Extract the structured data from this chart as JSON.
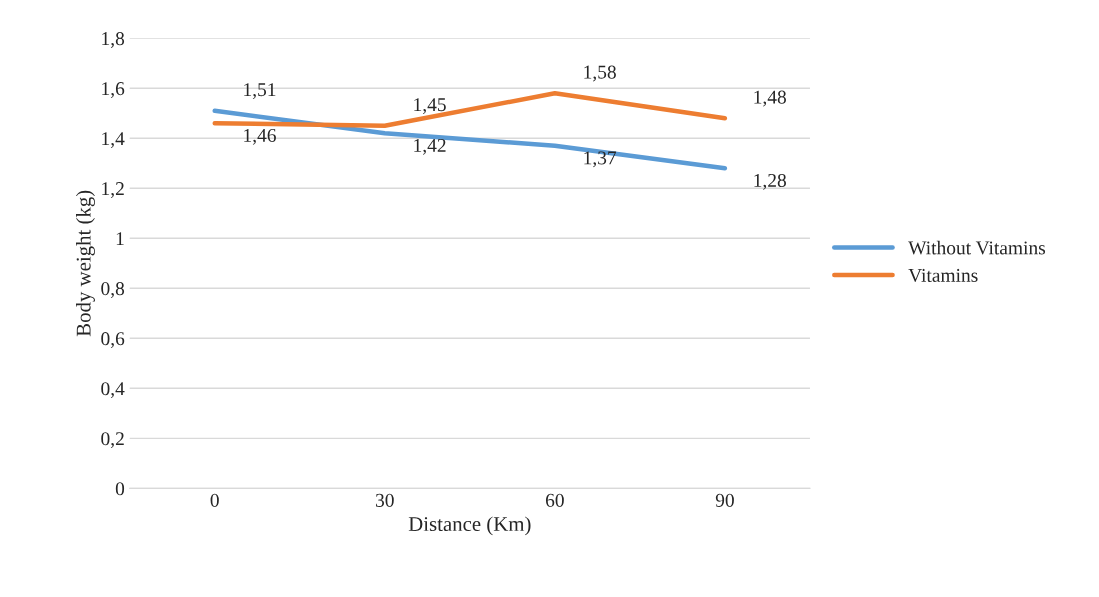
{
  "chart_data": {
    "type": "line",
    "xlabel": "Distance (Km)",
    "ylabel": "Body weight (kg)",
    "categories": [
      "0",
      "30",
      "60",
      "90"
    ],
    "series": [
      {
        "name": "Without Vitamins",
        "color": "#5b9bd5",
        "values": [
          1.51,
          1.42,
          1.37,
          1.28
        ],
        "value_labels": [
          "1,51",
          "1,42",
          "1,37",
          "1,28"
        ]
      },
      {
        "name": "Vitamins",
        "color": "#ed7d31",
        "values": [
          1.46,
          1.45,
          1.58,
          1.48
        ],
        "value_labels": [
          "1,46",
          "1,45",
          "1,58",
          "1,48"
        ]
      }
    ],
    "ylim": [
      0,
      1.8
    ],
    "yticks": [
      0,
      {
        "value": 0.2,
        "label": "0,2"
      },
      {
        "value": 0.4,
        "label": "0,4"
      },
      {
        "value": 0.6,
        "label": "0,6"
      },
      {
        "value": 0.8,
        "label": "0,8"
      },
      1,
      {
        "value": 1.2,
        "label": "1,2"
      },
      {
        "value": 1.4,
        "label": "1,4"
      },
      {
        "value": 1.6,
        "label": "1,6"
      },
      {
        "value": 1.8,
        "label": "1,8"
      }
    ],
    "grid": "y",
    "legend": "right",
    "marker": "none",
    "line_style": "solid"
  }
}
